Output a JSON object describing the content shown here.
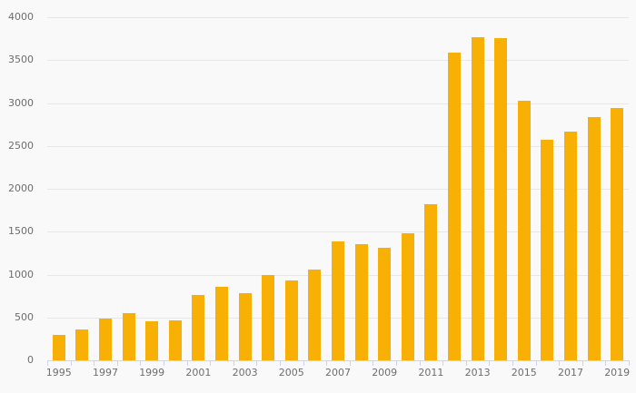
{
  "chart_data": {
    "type": "bar",
    "title": "",
    "xlabel": "",
    "ylabel": "",
    "categories": [
      1995,
      1996,
      1997,
      1998,
      1999,
      2000,
      2001,
      2002,
      2003,
      2004,
      2005,
      2006,
      2007,
      2008,
      2009,
      2010,
      2011,
      2012,
      2013,
      2014,
      2015,
      2016,
      2017,
      2018,
      2019
    ],
    "values": [
      295,
      360,
      485,
      550,
      455,
      470,
      765,
      860,
      780,
      995,
      930,
      1060,
      1385,
      1350,
      1310,
      1480,
      1820,
      3590,
      3765,
      3755,
      3030,
      2570,
      2670,
      2835,
      2940
    ],
    "ylim": [
      0,
      4000
    ],
    "ytick_step": 500,
    "ytick_labels": [
      "0",
      "500",
      "1000",
      "1500",
      "2000",
      "2500",
      "3000",
      "3500",
      "4000"
    ],
    "xtick_labels": [
      "1995",
      "1997",
      "1999",
      "2001",
      "2003",
      "2005",
      "2007",
      "2009",
      "2011",
      "2013",
      "2015",
      "2017",
      "2019"
    ],
    "grid": true,
    "legend": false,
    "colors": {
      "bar": "#F9B005",
      "background": "#F9F9F9",
      "gridline": "#E7E7E7",
      "axis_line": "#CCD6EB",
      "label_text": "#6E6E6E"
    }
  }
}
